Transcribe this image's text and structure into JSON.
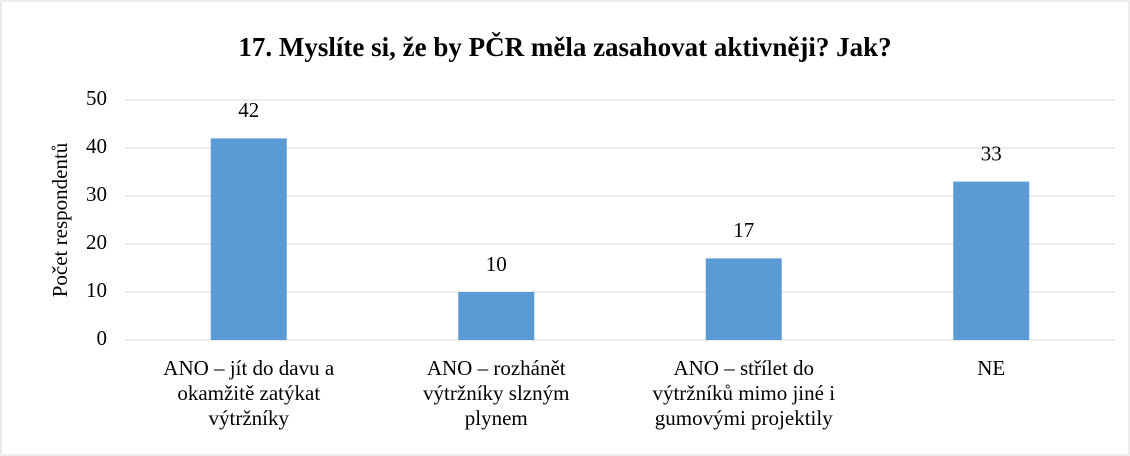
{
  "chart_data": {
    "type": "bar",
    "title": "17. Myslíte si, že by PČR měla zasahovat aktivněji? Jak?",
    "y_label": "Počet respondentů",
    "categories": [
      "ANO – jít do davu a okamžitě zatýkat výtržníky",
      "ANO – rozhánět výtržníky slzným plynem",
      "ANO – střílet do výtržníků mimo jiné i gumovými projektily",
      "NE"
    ],
    "values": [
      42,
      10,
      17,
      33
    ],
    "color": "#5b9bd5",
    "ylim": [
      0,
      50
    ],
    "yticks": [
      0,
      10,
      20,
      30,
      40,
      50
    ],
    "grid": true
  }
}
